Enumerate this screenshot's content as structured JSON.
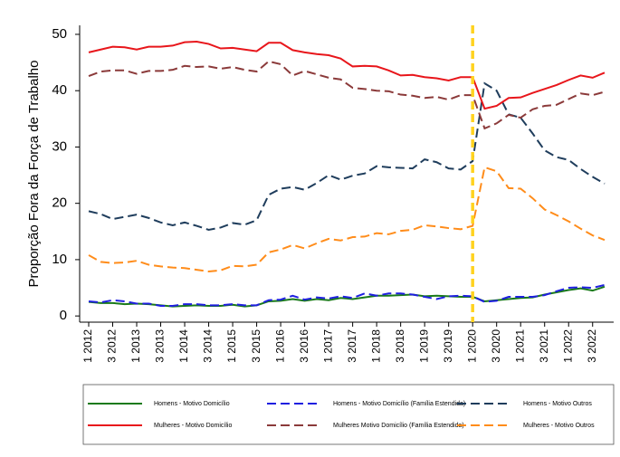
{
  "chart_data": {
    "type": "line",
    "y_label": "Proporção Fora da Força de Trabalho",
    "categories": [
      "1 2012",
      null,
      "3 2012",
      null,
      "1 2013",
      null,
      "3 2013",
      null,
      "1 2014",
      null,
      "3 2014",
      null,
      "1 2015",
      null,
      "3 2015",
      null,
      "1 2016",
      null,
      "3 2016",
      null,
      "1 2017",
      null,
      "3 2017",
      null,
      "1 2018",
      null,
      "3 2018",
      null,
      "1 2019",
      null,
      "3 2019",
      null,
      "1 2020",
      null,
      "3 2020",
      null,
      "1 2021",
      null,
      "3 2021",
      null,
      "1 2022",
      null,
      "3 2022",
      null
    ],
    "ylim": [
      -1.1,
      51.6
    ],
    "yticks": [
      0,
      10,
      20,
      30,
      40,
      50
    ],
    "grid": false,
    "legend": "bottom",
    "vline": {
      "category": "1 2020",
      "color": "#ffd21f"
    },
    "series": [
      {
        "name": "Homens - Motivo Domicílio",
        "color": "#1a7a1a",
        "dashed": false,
        "values": [
          2.5,
          2.3,
          2.3,
          2.1,
          2.2,
          2.1,
          1.9,
          1.7,
          1.8,
          1.9,
          1.8,
          1.8,
          2.0,
          1.7,
          1.9,
          2.6,
          2.7,
          3.0,
          2.7,
          3.0,
          2.8,
          3.2,
          3.0,
          3.3,
          3.6,
          3.6,
          3.7,
          3.8,
          3.5,
          3.6,
          3.5,
          3.4,
          3.4,
          2.6,
          2.8,
          3.0,
          3.2,
          3.3,
          3.8,
          4.2,
          4.6,
          4.9,
          4.5,
          5.2
        ]
      },
      {
        "name": "Homens - Motivo Domicílio (Família Estendida)",
        "color": "#1f1fe0",
        "dashed": true,
        "values": [
          2.6,
          2.4,
          2.8,
          2.6,
          2.2,
          2.2,
          1.8,
          1.8,
          2.1,
          2.1,
          1.9,
          1.9,
          2.1,
          1.9,
          1.9,
          2.8,
          2.9,
          3.6,
          2.9,
          3.3,
          3.1,
          3.5,
          3.2,
          4.0,
          3.6,
          4.0,
          4.0,
          3.8,
          3.4,
          3.0,
          3.5,
          3.6,
          3.5,
          2.5,
          2.7,
          3.4,
          3.4,
          3.4,
          3.7,
          4.4,
          5.0,
          5.1,
          5.0,
          5.5
        ]
      },
      {
        "name": "Homens - Motivo Outros",
        "color": "#1f3d5c",
        "dashed": true,
        "values": [
          18.6,
          18.1,
          17.2,
          17.6,
          18.0,
          17.4,
          16.6,
          16.1,
          16.6,
          16.0,
          15.3,
          15.7,
          16.5,
          16.2,
          17.0,
          21.5,
          22.6,
          22.9,
          22.4,
          23.6,
          25.0,
          24.2,
          24.9,
          25.3,
          26.6,
          26.4,
          26.3,
          26.2,
          27.8,
          27.3,
          26.2,
          26.0,
          27.5,
          41.3,
          40.0,
          35.8,
          35.2,
          32.4,
          29.4,
          28.2,
          27.7,
          26.1,
          24.7,
          23.5
        ]
      },
      {
        "name": "Mulheres - Motivo Domicílio",
        "color": "#e8161b",
        "dashed": false,
        "values": [
          46.8,
          47.3,
          47.8,
          47.7,
          47.3,
          47.8,
          47.8,
          48.0,
          48.6,
          48.7,
          48.3,
          47.5,
          47.6,
          47.3,
          47.0,
          48.5,
          48.5,
          47.2,
          46.8,
          46.5,
          46.3,
          45.7,
          44.3,
          44.4,
          44.3,
          43.6,
          42.7,
          42.8,
          42.4,
          42.2,
          41.8,
          42.4,
          42.4,
          36.8,
          37.3,
          38.7,
          38.8,
          39.6,
          40.3,
          41.0,
          41.9,
          42.7,
          42.3,
          43.2
        ]
      },
      {
        "name": "Mulheres Motivo Domicílio (Família Estendida)",
        "color": "#8b3a3a",
        "dashed": true,
        "values": [
          42.6,
          43.4,
          43.6,
          43.6,
          43.0,
          43.5,
          43.5,
          43.7,
          44.4,
          44.2,
          44.3,
          43.9,
          44.2,
          43.7,
          43.4,
          45.2,
          44.7,
          42.7,
          43.5,
          42.9,
          42.3,
          42.0,
          40.5,
          40.3,
          40.0,
          39.9,
          39.3,
          39.1,
          38.7,
          38.9,
          38.4,
          39.2,
          39.2,
          33.3,
          34.2,
          35.7,
          35.2,
          36.7,
          37.3,
          37.5,
          38.5,
          39.5,
          39.2,
          39.8
        ]
      },
      {
        "name": "Mulheres - Motivo Outros",
        "color": "#ff8c1a",
        "dashed": true,
        "values": [
          10.8,
          9.6,
          9.4,
          9.5,
          9.8,
          9.1,
          8.8,
          8.6,
          8.5,
          8.2,
          7.9,
          8.1,
          8.9,
          8.8,
          9.1,
          11.3,
          11.8,
          12.6,
          12.0,
          12.9,
          13.7,
          13.4,
          14.0,
          14.1,
          14.7,
          14.5,
          15.1,
          15.3,
          16.1,
          15.9,
          15.6,
          15.4,
          16.0,
          26.4,
          25.7,
          22.7,
          22.6,
          20.9,
          18.9,
          17.9,
          16.8,
          15.5,
          14.3,
          13.5
        ]
      }
    ]
  }
}
